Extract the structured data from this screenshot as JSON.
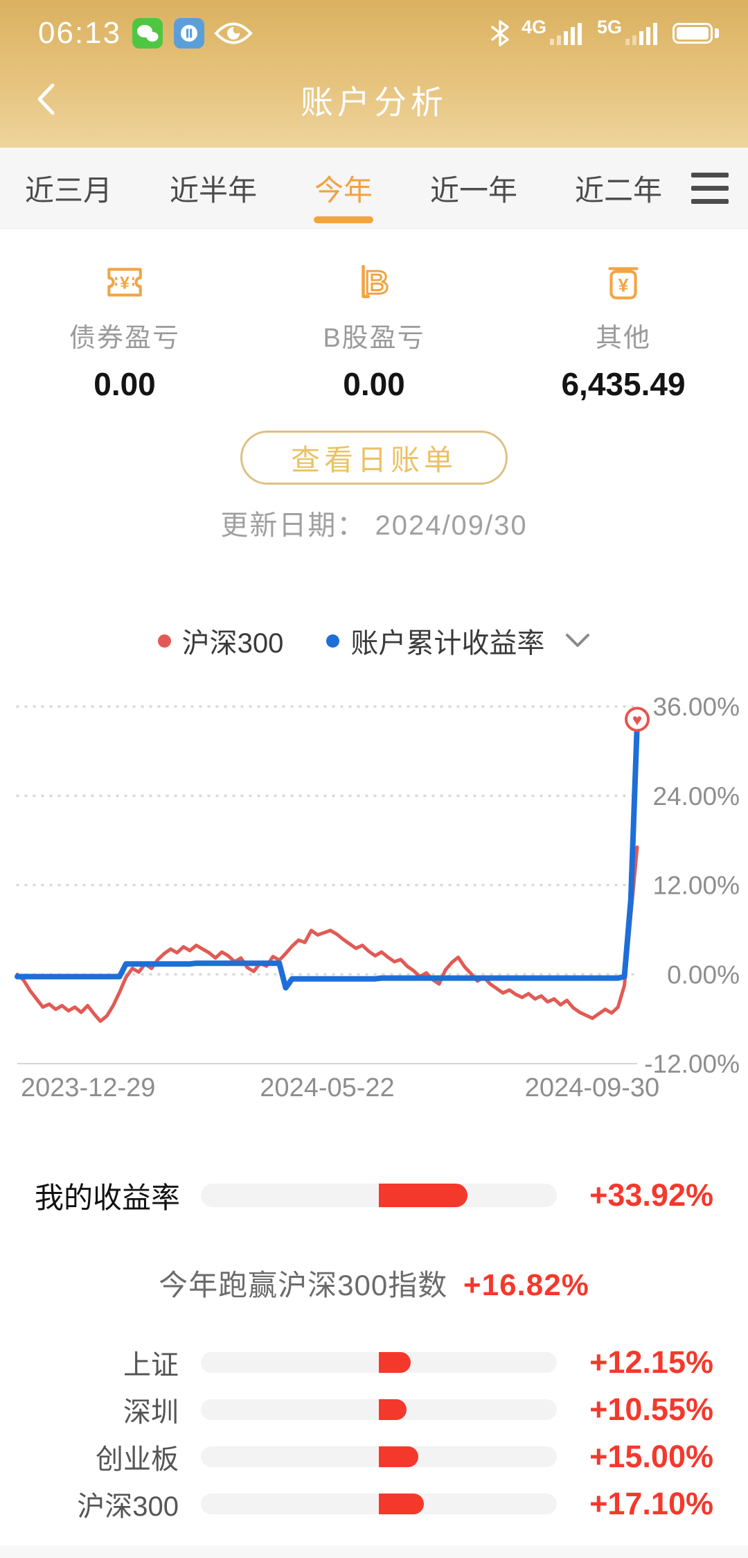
{
  "status_bar": {
    "time": "06:13",
    "network_4g": "4G",
    "network_5g": "5G"
  },
  "header": {
    "title": "账户分析"
  },
  "tabs": {
    "items": [
      {
        "label": "近三月",
        "active": false
      },
      {
        "label": "近半年",
        "active": false
      },
      {
        "label": "今年",
        "active": true
      },
      {
        "label": "近一年",
        "active": false
      },
      {
        "label": "近二年",
        "active": false
      }
    ]
  },
  "stats": [
    {
      "icon": "bond-coupon-icon",
      "label": "债券盈亏",
      "value": "0.00"
    },
    {
      "icon": "b-share-icon",
      "label": "B股盈亏",
      "value": "0.00"
    },
    {
      "icon": "other-money-icon",
      "label": "其他",
      "value": "6,435.49"
    }
  ],
  "bill_button_label": "查看日账单",
  "update_date": "更新日期： 2024/09/30",
  "legend": [
    {
      "label": "沪深300",
      "color": "#e15a54"
    },
    {
      "label": "账户累计收益率",
      "color": "#1e6ed8"
    }
  ],
  "chart_data": {
    "type": "line",
    "title": "",
    "x_ticks": [
      "2023-12-29",
      "2024-05-22",
      "2024-09-30"
    ],
    "y_ticks": [
      "36.00%",
      "24.00%",
      "12.00%",
      "0.00%",
      "-12.00%"
    ],
    "y_tick_values": [
      36,
      24,
      12,
      0,
      -12
    ],
    "ylim": [
      -12,
      36
    ],
    "grid": "dotted-horizontal",
    "legend_position": "top",
    "end_marker": {
      "series": "账户累计收益率",
      "shape": "heart-in-circle",
      "value": 33.92
    },
    "series": [
      {
        "name": "沪深300",
        "color": "#e15a54",
        "end_value": 17.1,
        "values": [
          0,
          -0.8,
          -2.2,
          -3.3,
          -4.4,
          -4.0,
          -4.7,
          -4.2,
          -4.9,
          -4.4,
          -5.1,
          -4.2,
          -5.3,
          -6.3,
          -5.6,
          -4.2,
          -2.4,
          -0.4,
          0.8,
          0.3,
          1.4,
          0.8,
          2.0,
          2.8,
          3.4,
          2.9,
          3.7,
          3.2,
          3.9,
          3.4,
          2.9,
          2.2,
          3.0,
          2.5,
          1.7,
          2.2,
          0.9,
          0.4,
          1.5,
          1.1,
          2.4,
          1.9,
          2.8,
          3.8,
          4.6,
          4.3,
          5.9,
          5.3,
          5.6,
          5.9,
          5.4,
          4.7,
          4.1,
          3.5,
          3.9,
          3.1,
          2.5,
          3.0,
          2.3,
          1.7,
          2.0,
          1.1,
          0.5,
          -0.3,
          0.2,
          -0.7,
          -1.3,
          0.6,
          1.6,
          2.3,
          1.0,
          0.1,
          -0.9,
          -0.4,
          -1.3,
          -1.9,
          -2.5,
          -2.1,
          -2.7,
          -3.1,
          -2.6,
          -3.3,
          -2.9,
          -3.7,
          -3.3,
          -4.1,
          -3.5,
          -4.5,
          -5.1,
          -5.5,
          -5.9,
          -5.3,
          -4.7,
          -5.2,
          -4.4,
          -1.5,
          8.0,
          17.1
        ]
      },
      {
        "name": "账户累计收益率",
        "color": "#1e6ed8",
        "end_value": 33.92,
        "values": [
          -0.3,
          -0.3,
          -0.3,
          -0.3,
          -0.3,
          -0.3,
          -0.3,
          -0.3,
          -0.3,
          -0.3,
          -0.3,
          -0.3,
          -0.3,
          -0.3,
          -0.3,
          -0.3,
          -0.3,
          1.4,
          1.4,
          1.4,
          1.4,
          1.4,
          1.4,
          1.4,
          1.4,
          1.4,
          1.4,
          1.4,
          1.5,
          1.5,
          1.5,
          1.5,
          1.5,
          1.5,
          1.5,
          1.5,
          1.5,
          1.5,
          1.5,
          1.5,
          1.5,
          1.5,
          -1.8,
          -0.6,
          -0.6,
          -0.6,
          -0.6,
          -0.6,
          -0.6,
          -0.6,
          -0.6,
          -0.6,
          -0.6,
          -0.6,
          -0.6,
          -0.6,
          -0.6,
          -0.5,
          -0.5,
          -0.5,
          -0.5,
          -0.5,
          -0.5,
          -0.5,
          -0.5,
          -0.5,
          -0.5,
          -0.5,
          -0.5,
          -0.5,
          -0.5,
          -0.5,
          -0.5,
          -0.5,
          -0.5,
          -0.5,
          -0.5,
          -0.5,
          -0.5,
          -0.5,
          -0.5,
          -0.5,
          -0.5,
          -0.5,
          -0.5,
          -0.5,
          -0.5,
          -0.5,
          -0.5,
          -0.5,
          -0.5,
          -0.5,
          -0.5,
          -0.5,
          -0.5,
          -0.3,
          10.0,
          33.92
        ]
      }
    ]
  },
  "performance": {
    "my_return": {
      "label": "我的收益率",
      "value": "+33.92%",
      "value_num": 33.92
    },
    "outperform_text": "今年跑赢沪深300指数",
    "outperform_value": "+16.82%",
    "bar_scale_max": 68,
    "benchmarks": [
      {
        "label": "上证",
        "value": "+12.15%",
        "value_num": 12.15
      },
      {
        "label": "深圳",
        "value": "+10.55%",
        "value_num": 10.55
      },
      {
        "label": "创业板",
        "value": "+15.00%",
        "value_num": 15.0
      },
      {
        "label": "沪深300",
        "value": "+17.10%",
        "value_num": 17.1
      }
    ]
  },
  "colors": {
    "header_gold_top": "#dbb160",
    "header_gold_bottom": "#eed49c",
    "accent_orange": "#f2a445",
    "tab_active_orange": "#f2a141",
    "button_gold": "#eac264",
    "bright_red": "#f5382c",
    "chart_red": "#e15a54",
    "chart_blue": "#1e6ed8"
  }
}
